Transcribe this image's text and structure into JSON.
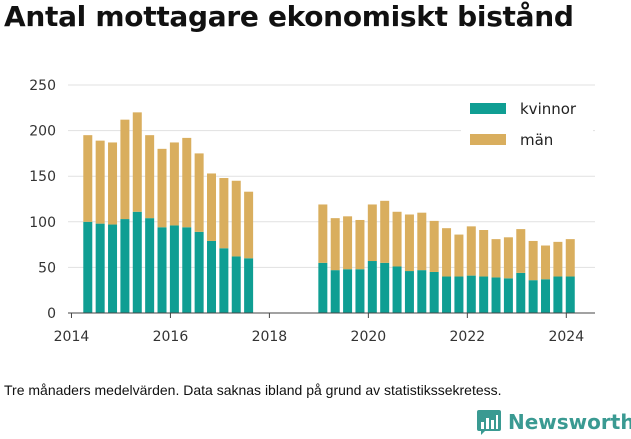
{
  "title": "Antal mottagare ekonomiskt bistånd",
  "footnote": "Tre månaders medelvärden. Data saknas ibland på grund av statistikssekretess.",
  "brand": {
    "name": "Newsworthy",
    "icon": "newsworthy-chart-logo-icon"
  },
  "colors": {
    "kvinnor": "#0f9e93",
    "man": "#d9ae5e",
    "grid": "#e1e1e1",
    "brand": "#3a9a92"
  },
  "chart_data": {
    "type": "bar",
    "stacked": true,
    "title": "Antal mottagare ekonomiskt bistånd",
    "xlabel": "",
    "ylabel": "",
    "xlim": [
      2014,
      2024.5
    ],
    "ylim": [
      0,
      250
    ],
    "yticks": [
      0,
      50,
      100,
      150,
      200,
      250
    ],
    "xticks": [
      2014,
      2016,
      2018,
      2020,
      2022,
      2024
    ],
    "grid": true,
    "legend": "top-right",
    "x": [
      2014.33,
      2014.58,
      2014.83,
      2015.08,
      2015.33,
      2015.58,
      2015.83,
      2016.08,
      2016.33,
      2016.58,
      2016.83,
      2017.08,
      2017.33,
      2017.58,
      2019.08,
      2019.33,
      2019.58,
      2019.83,
      2020.08,
      2020.33,
      2020.58,
      2020.83,
      2021.08,
      2021.33,
      2021.58,
      2021.83,
      2022.08,
      2022.33,
      2022.58,
      2022.83,
      2023.08,
      2023.33,
      2023.58,
      2023.83,
      2024.08
    ],
    "series": [
      {
        "name": "kvinnor",
        "color": "#0f9e93",
        "values": [
          100,
          98,
          97,
          103,
          111,
          104,
          94,
          96,
          94,
          89,
          79,
          71,
          62,
          60,
          55,
          47,
          48,
          48,
          57,
          55,
          51,
          46,
          47,
          45,
          40,
          40,
          41,
          40,
          39,
          38,
          44,
          36,
          37,
          40,
          40
        ]
      },
      {
        "name": "män",
        "color": "#d9ae5e",
        "values": [
          95,
          91,
          90,
          109,
          109,
          91,
          86,
          91,
          98,
          86,
          74,
          77,
          83,
          73,
          64,
          57,
          58,
          54,
          62,
          68,
          60,
          62,
          63,
          56,
          53,
          46,
          54,
          51,
          42,
          45,
          48,
          43,
          37,
          38,
          41
        ]
      }
    ]
  }
}
